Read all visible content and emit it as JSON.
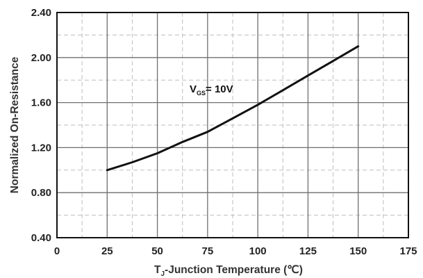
{
  "chart_data": {
    "type": "line",
    "xlabel": {
      "main": "T",
      "sub": "J",
      "rest": "-Junction Temperature (℃)"
    },
    "ylabel": "Normalized On-Resistance",
    "xlim": [
      0,
      175
    ],
    "ylim": [
      0.4,
      2.4
    ],
    "x_ticks": [
      0,
      25,
      50,
      75,
      100,
      125,
      150,
      175
    ],
    "x_tick_labels": [
      "0",
      "25",
      "50",
      "75",
      "100",
      "125",
      "150",
      "175"
    ],
    "y_ticks": [
      0.4,
      0.8,
      1.2,
      1.6,
      2.0,
      2.4
    ],
    "y_tick_labels": [
      "0.40",
      "0.80",
      "1.20",
      "1.60",
      "2.00",
      "2.40"
    ],
    "grid": true,
    "series": [
      {
        "x": [
          25,
          37.5,
          50,
          62.5,
          75,
          87.5,
          100,
          112.5,
          125,
          137.5,
          150
        ],
        "y": [
          1.0,
          1.07,
          1.15,
          1.25,
          1.34,
          1.46,
          1.58,
          1.71,
          1.84,
          1.97,
          2.1
        ]
      }
    ],
    "annotations": [
      {
        "main": "V",
        "sub": "GS",
        "rest": "= 10V"
      }
    ]
  }
}
